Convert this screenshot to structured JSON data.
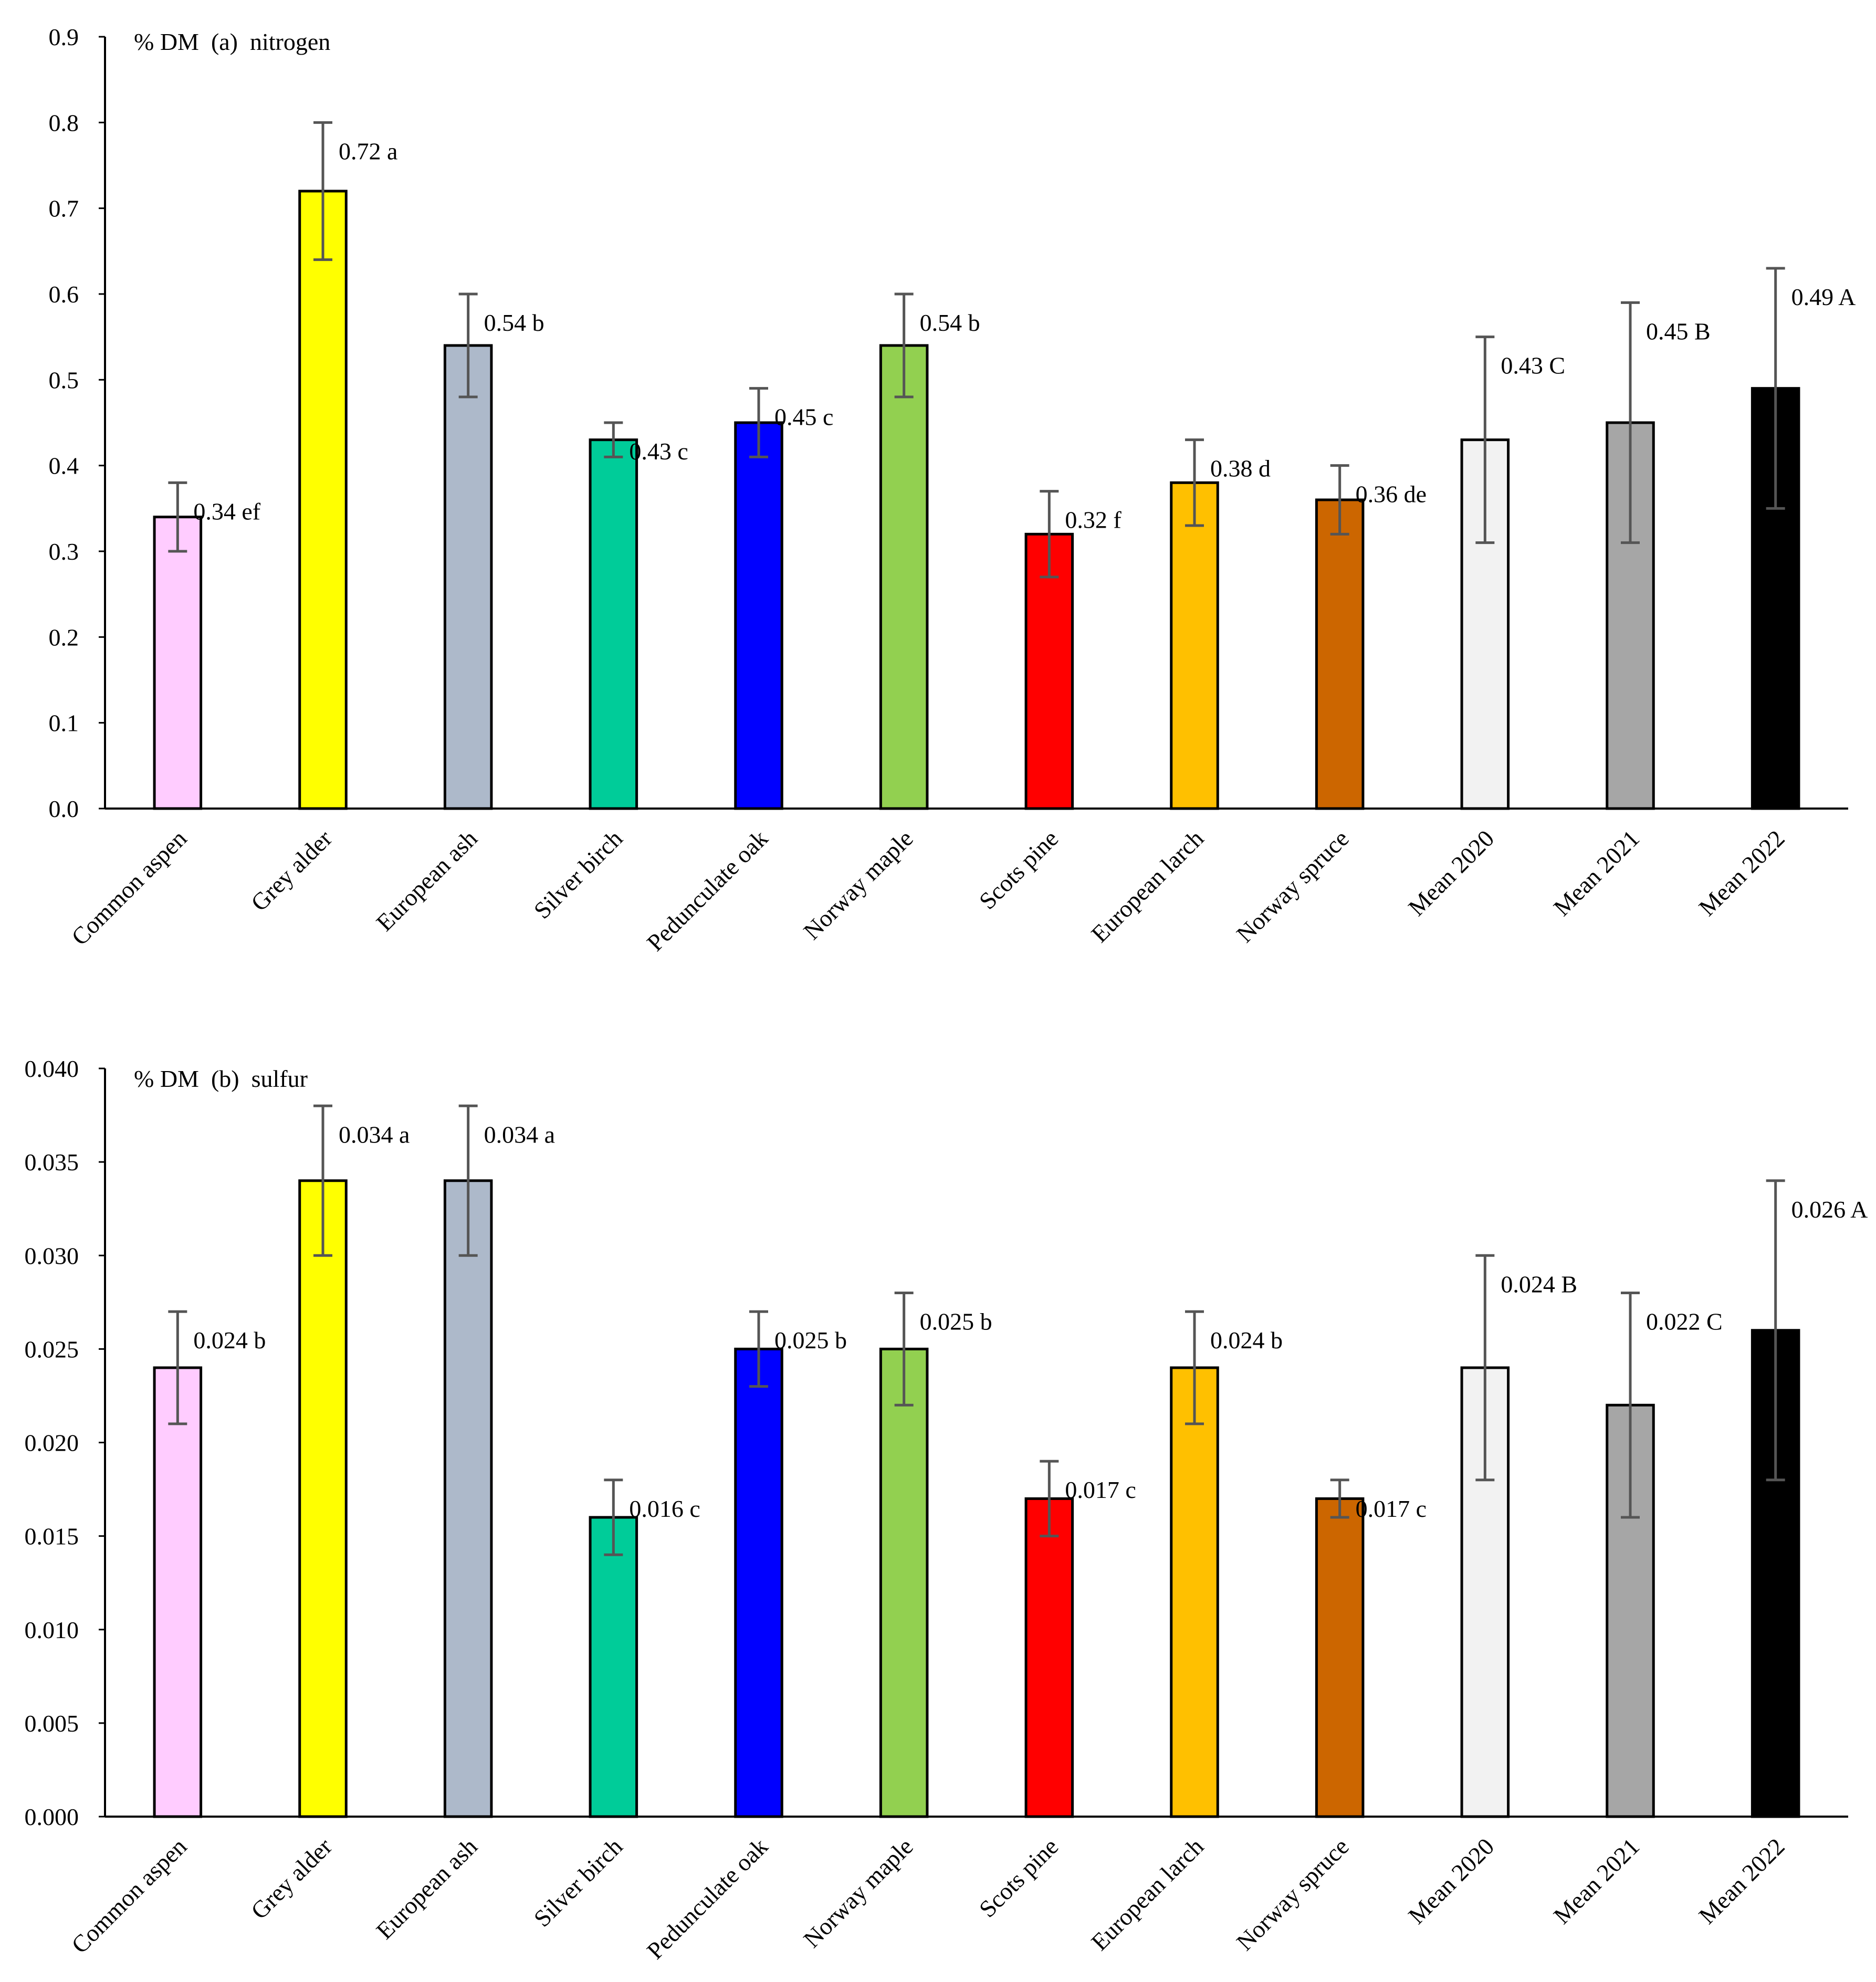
{
  "chart_data": [
    {
      "type": "bar",
      "title": "% DM  (a)  nitrogen",
      "xlabel": "",
      "ylabel": "% DM",
      "ylim": [
        0,
        0.9
      ],
      "ytick_step": 0.1,
      "ytick_decimals": 1,
      "categories": [
        "Common aspen",
        "Grey alder",
        "European ash",
        "Silver birch",
        "Pedunculate oak",
        "Norway maple",
        "Scots pine",
        "European larch",
        "Norway spruce",
        "Mean 2020",
        "Mean 2021",
        "Mean 2022"
      ],
      "values": [
        0.34,
        0.72,
        0.54,
        0.43,
        0.45,
        0.54,
        0.32,
        0.38,
        0.36,
        0.43,
        0.45,
        0.49
      ],
      "errors": [
        0.04,
        0.08,
        0.06,
        0.02,
        0.04,
        0.06,
        0.05,
        0.05,
        0.04,
        0.12,
        0.14,
        0.14
      ],
      "labels": [
        "0.34 ef",
        "0.72 a",
        "0.54 b",
        "0.43 c",
        "0.45 c",
        "0.54 b",
        "0.32 f",
        "0.38 d",
        "0.36 de",
        "0.43 C",
        "0.45 B",
        "0.49 A"
      ],
      "colors": [
        "#FFCCFF",
        "#FFFF00",
        "#ADB9CA",
        "#00CC99",
        "#0000FF",
        "#92D050",
        "#FF0000",
        "#FFC000",
        "#CC6600",
        "#F2F2F2",
        "#A6A6A6",
        "#000000"
      ]
    },
    {
      "type": "bar",
      "title": "% DM  (b)  sulfur",
      "xlabel": "",
      "ylabel": "% DM",
      "ylim": [
        0,
        0.04
      ],
      "ytick_step": 0.005,
      "ytick_decimals": 3,
      "categories": [
        "Common aspen",
        "Grey alder",
        "European ash",
        "Silver birch",
        "Pedunculate oak",
        "Norway maple",
        "Scots pine",
        "European larch",
        "Norway spruce",
        "Mean 2020",
        "Mean 2021",
        "Mean 2022"
      ],
      "values": [
        0.024,
        0.034,
        0.034,
        0.016,
        0.025,
        0.025,
        0.017,
        0.024,
        0.017,
        0.024,
        0.022,
        0.026
      ],
      "errors": [
        0.003,
        0.004,
        0.004,
        0.002,
        0.002,
        0.003,
        0.002,
        0.003,
        0.001,
        0.006,
        0.006,
        0.008
      ],
      "labels": [
        "0.024 b",
        "0.034 a",
        "0.034 a",
        "0.016 c",
        "0.025 b",
        "0.025 b",
        "0.017 c",
        "0.024 b",
        "0.017 c",
        "0.024 B",
        "0.022 C",
        "0.026 A"
      ],
      "colors": [
        "#FFCCFF",
        "#FFFF00",
        "#ADB9CA",
        "#00CC99",
        "#0000FF",
        "#92D050",
        "#FF0000",
        "#FFC000",
        "#CC6600",
        "#F2F2F2",
        "#A6A6A6",
        "#000000"
      ]
    }
  ]
}
